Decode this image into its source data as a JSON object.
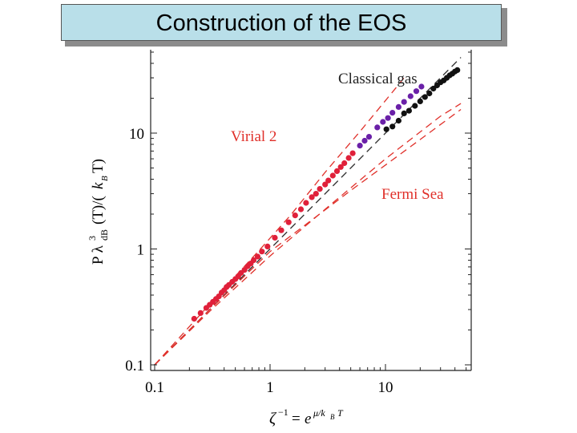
{
  "slide": {
    "title": "Construction of the EOS"
  },
  "chart_data": {
    "type": "scatter",
    "title": "",
    "xlabel_html": "ζ⁻¹ = e^(μ/k_B T)",
    "ylabel_html": "P λ³_dB(T)/(k_B T)",
    "xscale": "log",
    "yscale": "log",
    "xlim": [
      0.1,
      45
    ],
    "ylim": [
      0.1,
      38
    ],
    "x_ticks": [
      {
        "v": 0.1,
        "label": "0.1"
      },
      {
        "v": 1,
        "label": "1"
      },
      {
        "v": 10,
        "label": "10"
      }
    ],
    "y_ticks": [
      {
        "v": 0.1,
        "label": "0.1"
      },
      {
        "v": 1,
        "label": "1"
      },
      {
        "v": 10,
        "label": "10"
      }
    ],
    "annotations": [
      {
        "text": "Classical gas",
        "color": "#222222"
      },
      {
        "text": "Virial 2",
        "color": "#e0302a"
      },
      {
        "text": "Fermi Sea",
        "color": "#e0302a"
      }
    ],
    "lines": [
      {
        "style": "dashed",
        "color": "#333333",
        "points": [
          [
            0.1,
            0.1
          ],
          [
            45,
            45
          ]
        ]
      },
      {
        "style": "dashed",
        "color": "#e0302a",
        "points": [
          [
            0.1,
            0.1
          ],
          [
            0.2,
            0.214
          ],
          [
            0.4,
            0.457
          ],
          [
            0.8,
            0.966
          ],
          [
            1.5,
            1.95
          ],
          [
            3,
            4.59
          ],
          [
            6,
            10.3
          ],
          [
            12,
            23.8
          ],
          [
            15,
            31.4
          ]
        ]
      },
      {
        "style": "dashed",
        "color": "#e0302a",
        "points": [
          [
            0.1,
            0.1
          ],
          [
            0.3,
            0.3
          ],
          [
            1,
            0.95
          ],
          [
            2,
            1.6
          ],
          [
            5,
            3.2
          ],
          [
            10,
            5.3
          ],
          [
            20,
            8.8
          ],
          [
            45,
            16
          ]
        ]
      },
      {
        "style": "dashed",
        "color": "#e0302a",
        "points": [
          [
            0.1,
            0.1
          ],
          [
            0.3,
            0.29
          ],
          [
            1,
            0.87
          ],
          [
            3,
            2.2
          ],
          [
            10,
            6.0
          ],
          [
            30,
            14
          ],
          [
            45,
            18
          ]
        ]
      }
    ],
    "series": [
      {
        "color": "#e0203a",
        "points": [
          [
            0.22,
            0.25
          ],
          [
            0.25,
            0.28
          ],
          [
            0.28,
            0.31
          ],
          [
            0.3,
            0.33
          ],
          [
            0.32,
            0.35
          ],
          [
            0.34,
            0.37
          ],
          [
            0.36,
            0.39
          ],
          [
            0.38,
            0.42
          ],
          [
            0.4,
            0.44
          ],
          [
            0.42,
            0.47
          ],
          [
            0.44,
            0.49
          ],
          [
            0.47,
            0.52
          ],
          [
            0.5,
            0.55
          ],
          [
            0.53,
            0.58
          ],
          [
            0.56,
            0.62
          ],
          [
            0.6,
            0.66
          ],
          [
            0.64,
            0.71
          ],
          [
            0.68,
            0.75
          ],
          [
            0.72,
            0.8
          ],
          [
            0.78,
            0.86
          ],
          [
            0.85,
            0.95
          ],
          [
            0.95,
            1.05
          ],
          [
            1.1,
            1.25
          ],
          [
            1.25,
            1.45
          ],
          [
            1.45,
            1.7
          ],
          [
            1.65,
            1.95
          ],
          [
            1.85,
            2.2
          ],
          [
            2.05,
            2.5
          ],
          [
            2.3,
            2.8
          ],
          [
            2.5,
            3.0
          ],
          [
            2.7,
            3.3
          ],
          [
            3.0,
            3.6
          ],
          [
            3.2,
            3.9
          ],
          [
            3.5,
            4.3
          ],
          [
            3.8,
            4.7
          ],
          [
            4.1,
            5.1
          ],
          [
            4.4,
            5.5
          ],
          [
            4.8,
            6.1
          ],
          [
            5.2,
            6.7
          ]
        ]
      },
      {
        "color": "#6a20a8",
        "points": [
          [
            6.0,
            7.8
          ],
          [
            6.6,
            8.6
          ],
          [
            7.2,
            9.3
          ],
          [
            8.5,
            11.2
          ],
          [
            9.5,
            12.5
          ],
          [
            10.5,
            13.5
          ],
          [
            11.5,
            15.0
          ],
          [
            13.0,
            16.8
          ],
          [
            14.5,
            18.6
          ],
          [
            16.5,
            20.8
          ],
          [
            18.5,
            23.0
          ],
          [
            20.5,
            25.2
          ]
        ]
      },
      {
        "color": "#111111",
        "points": [
          [
            10.2,
            10.8
          ],
          [
            11.5,
            11.4
          ],
          [
            13.0,
            12.8
          ],
          [
            14.5,
            14.8
          ],
          [
            16.0,
            15.6
          ],
          [
            18.0,
            17.2
          ],
          [
            20.0,
            18.8
          ],
          [
            22.0,
            20.5
          ],
          [
            24.0,
            22.0
          ],
          [
            26.0,
            24.2
          ],
          [
            28.0,
            25.8
          ],
          [
            30.0,
            27.4
          ],
          [
            32.0,
            28.5
          ],
          [
            34.0,
            30.0
          ],
          [
            36.0,
            31.5
          ],
          [
            38.0,
            32.6
          ],
          [
            40.0,
            34.0
          ],
          [
            42.0,
            35.0
          ]
        ]
      }
    ]
  }
}
